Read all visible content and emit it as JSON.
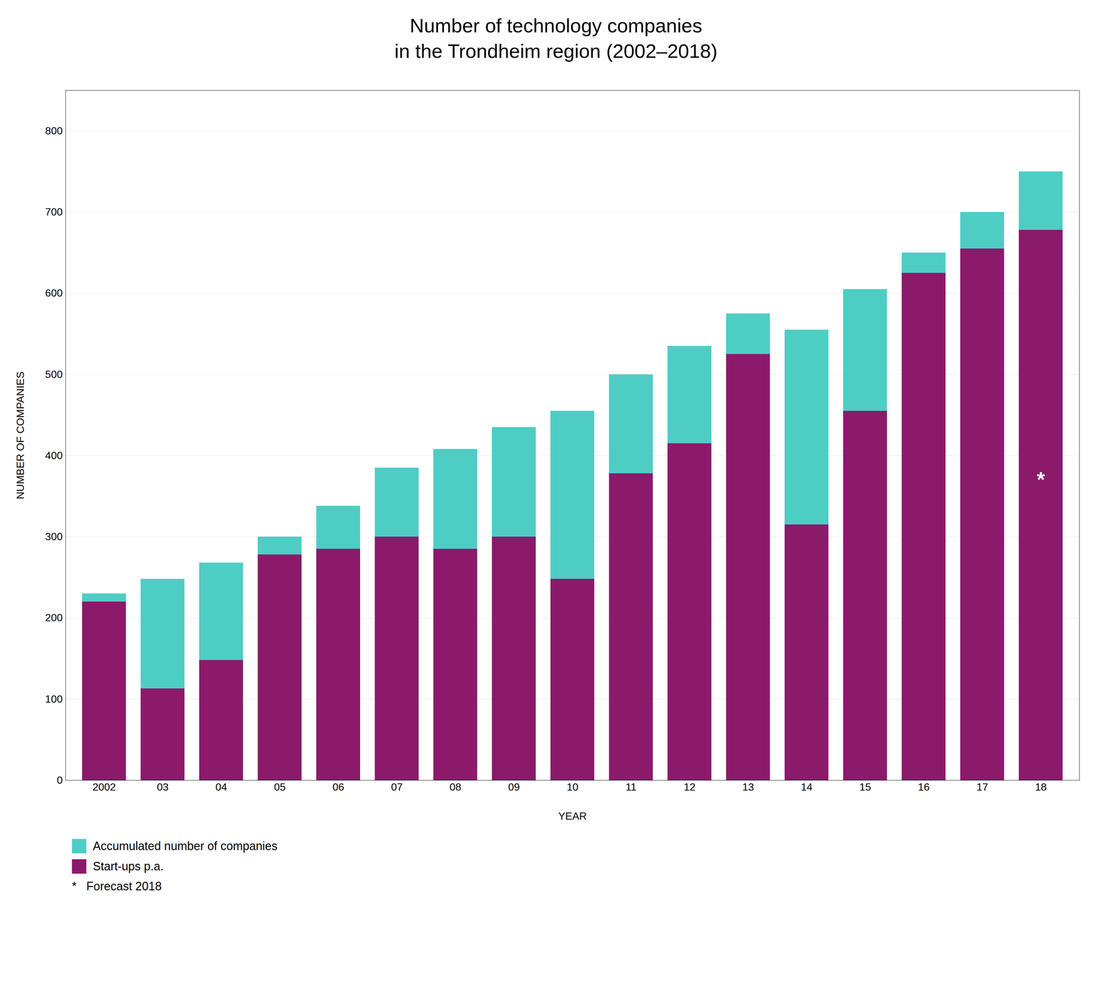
{
  "chart_data": {
    "type": "bar",
    "title": "Number of technology companies\nin the Trondheim region (2002–2018)",
    "xlabel": "YEAR",
    "ylabel": "NUMBER OF COMPANIES",
    "categories": [
      "2002",
      "03",
      "04",
      "05",
      "06",
      "07",
      "08",
      "09",
      "10",
      "11",
      "12",
      "13",
      "14",
      "15",
      "16",
      "17",
      "18"
    ],
    "series": [
      {
        "name": "Accumulated number of companies",
        "color": "#4ecdc4",
        "values": [
          230,
          248,
          268,
          300,
          338,
          385,
          408,
          435,
          455,
          500,
          535,
          575,
          555,
          605,
          650,
          700,
          750
        ]
      },
      {
        "name": "Start-ups p.a.",
        "color": "#8b1a6b",
        "values": [
          220,
          113,
          148,
          278,
          285,
          300,
          285,
          300,
          248,
          378,
          415,
          525,
          315,
          455,
          625,
          655,
          678
        ]
      }
    ],
    "stacked": false,
    "ylim": [
      0,
      850
    ],
    "yticks": [
      0,
      100,
      200,
      300,
      400,
      500,
      600,
      700,
      800
    ],
    "grid": true,
    "legend": "bottom",
    "annotations": [
      {
        "text": "*",
        "category": "18",
        "y": 370
      },
      {
        "text": "*   Forecast 2018"
      }
    ]
  }
}
